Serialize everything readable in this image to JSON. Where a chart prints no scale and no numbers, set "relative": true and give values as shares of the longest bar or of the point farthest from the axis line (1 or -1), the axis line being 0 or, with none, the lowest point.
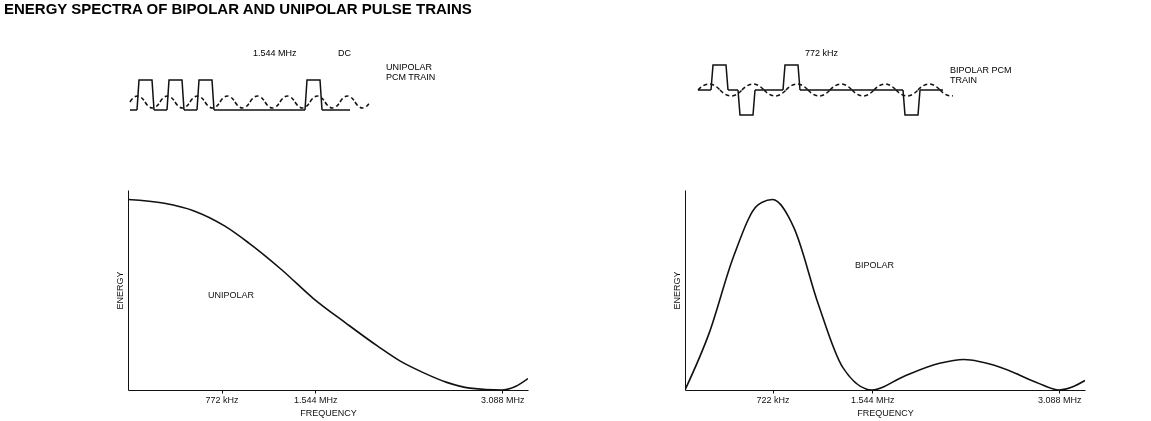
{
  "chart_data": [
    {
      "type": "line",
      "title": "ENERGY SPECTRA OF BIPOLAR AND UNIPOLAR PULSE TRAINS",
      "xlabel": "FREQUENCY",
      "ylabel": "ENERGY",
      "relative": true,
      "xlim": [
        0,
        3300
      ],
      "xticks": [
        {
          "value": 772,
          "label": "772 kHz"
        },
        {
          "value": 1544,
          "label": "1.544 MHz"
        },
        {
          "value": 3088,
          "label": "3.088 MHz"
        }
      ],
      "grid": false,
      "line_style": "solid",
      "annotations": [
        "1.544 MHz",
        "DC",
        "UNIPOLAR PCM TRAIN"
      ],
      "series": [
        {
          "name": "UNIPOLAR",
          "color": "#111111",
          "x": [
            0,
            300,
            545,
            800,
            1000,
            1270,
            1530,
            1800,
            2060,
            2250,
            2440,
            2630,
            2820,
            3088,
            3200,
            3300
          ],
          "values": [
            1,
            0.98,
            0.94,
            0.86,
            0.77,
            0.63,
            0.48,
            0.35,
            0.23,
            0.15,
            0.09,
            0.04,
            0.01,
            0,
            0.02,
            0.06
          ]
        }
      ]
    },
    {
      "type": "line",
      "xlabel": "FREQUENCY",
      "ylabel": "ENERGY",
      "relative": true,
      "xlim": [
        0,
        3300
      ],
      "xticks": [
        {
          "value": 722,
          "label": "722 kHz"
        },
        {
          "value": 1544,
          "label": "1.544 MHz"
        },
        {
          "value": 3088,
          "label": "3.088 MHz"
        }
      ],
      "grid": false,
      "line_style": "solid",
      "annotations": [
        "772 kHz",
        "BIPOLAR PCM TRAIN"
      ],
      "series": [
        {
          "name": "BIPOLAR",
          "color": "#111111",
          "x": [
            0,
            200,
            400,
            600,
            722,
            900,
            1100,
            1300,
            1544,
            1800,
            2100,
            2300,
            2600,
            2900,
            3088,
            3300
          ],
          "values": [
            0,
            0.3,
            0.7,
            0.97,
            1,
            0.85,
            0.45,
            0.12,
            0,
            0.07,
            0.14,
            0.16,
            0.12,
            0.04,
            0,
            0.05
          ]
        }
      ]
    }
  ]
}
